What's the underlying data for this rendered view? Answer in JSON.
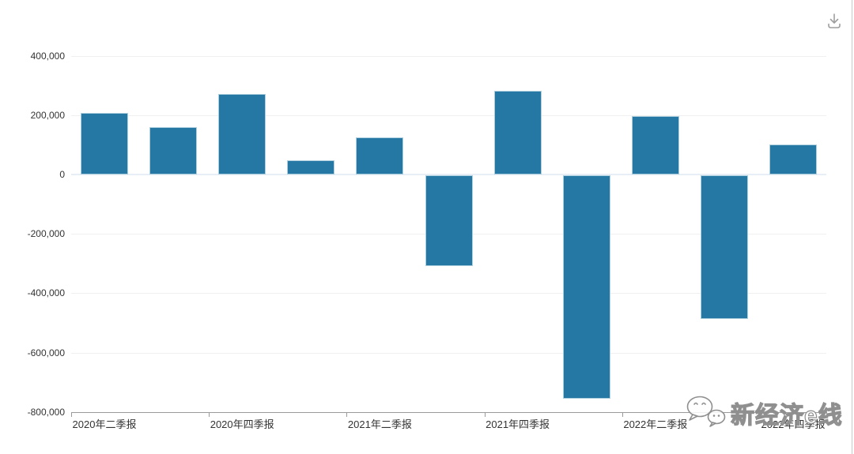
{
  "header": {
    "download_icon": "download"
  },
  "chart_data": {
    "type": "bar",
    "title": "",
    "xlabel": "",
    "ylabel": "",
    "x_tick_labels": [
      "2020年二季报",
      "2020年四季报",
      "2021年二季报",
      "2021年四季报",
      "2022年二季报",
      "2022年四季报"
    ],
    "values": [
      207000,
      160000,
      272000,
      48000,
      124000,
      -305000,
      281000,
      -753000,
      198000,
      -483000,
      102000
    ],
    "bars_per_label": 2,
    "y_tick_values": [
      400000,
      200000,
      0,
      -200000,
      -400000,
      -600000,
      -800000
    ],
    "y_tick_labels": [
      "400,000",
      "200,000",
      "0",
      "-200,000",
      "-400,000",
      "-600,000",
      "-800,000"
    ],
    "ylim": [
      -800000,
      400000
    ],
    "legend": "none",
    "grid": "horizontal",
    "bar_color": "#2578a4",
    "bar_border_color": "#aecfde"
  },
  "watermark": {
    "text": "新经济e线",
    "icon": "chat-bubbles"
  },
  "colors": {
    "axis": "#9a9a9a",
    "gridline": "#f0f0f0",
    "zero_line": "#e8eef5",
    "label_text": "#333333",
    "download_icon": "#9e9e9e",
    "right_border": "#c9c9c9"
  }
}
